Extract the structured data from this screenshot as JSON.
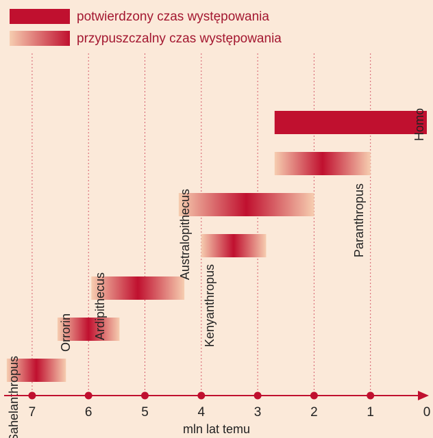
{
  "chart_data": {
    "type": "timeline",
    "xlabel": "mln lat temu",
    "xlim": [
      7.5,
      0
    ],
    "ticks": [
      7,
      6,
      5,
      4,
      3,
      2,
      1,
      0
    ],
    "legend": [
      {
        "key": "confirmed",
        "label": "potwierdzony czas występowania"
      },
      {
        "key": "presumed",
        "label": "przypuszczalny czas występowania"
      }
    ],
    "taxa": [
      {
        "name": "Sahelanthropus",
        "start": 7.45,
        "end": 6.4,
        "type": "presumed"
      },
      {
        "name": "Orrorin",
        "start": 6.55,
        "end": 5.45,
        "type": "presumed"
      },
      {
        "name": "Ardipithecus",
        "start": 5.95,
        "end": 4.3,
        "type": "presumed"
      },
      {
        "name": "Australopithecus",
        "start": 4.4,
        "end": 2.0,
        "type": "presumed"
      },
      {
        "name": "Kenyanthropus",
        "start": 4.0,
        "end": 2.85,
        "type": "presumed"
      },
      {
        "name": "Paranthropus",
        "start": 2.7,
        "end": 1.0,
        "type": "presumed"
      },
      {
        "name": "Homo",
        "start": 2.7,
        "end": 0.0,
        "type": "confirmed"
      }
    ],
    "colors": {
      "primary": "#c0102f",
      "light": "#f6cdb0",
      "background": "#fbe9d9",
      "text": "#222222"
    }
  }
}
